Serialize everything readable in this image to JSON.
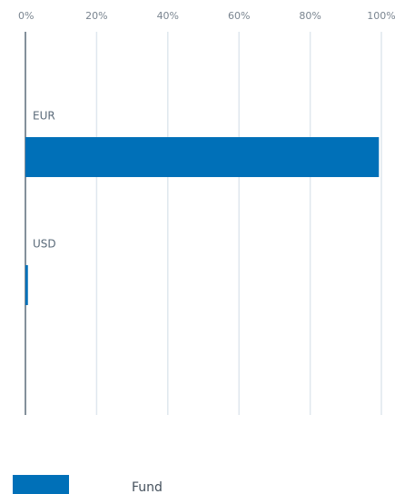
{
  "chart_data": {
    "type": "bar",
    "categories": [
      "EUR",
      "USD"
    ],
    "series": [
      {
        "name": "Fund",
        "color": "#0070b8",
        "values": [
          99.3,
          0.7
        ]
      }
    ],
    "xlim": [
      0,
      100
    ],
    "xticks": [
      {
        "value": 0,
        "label": "0%"
      },
      {
        "value": 20,
        "label": "20%"
      },
      {
        "value": 40,
        "label": "40%"
      },
      {
        "value": 60,
        "label": "60%"
      },
      {
        "value": 80,
        "label": "80%"
      },
      {
        "value": 100,
        "label": "100%"
      }
    ],
    "grid": true
  }
}
